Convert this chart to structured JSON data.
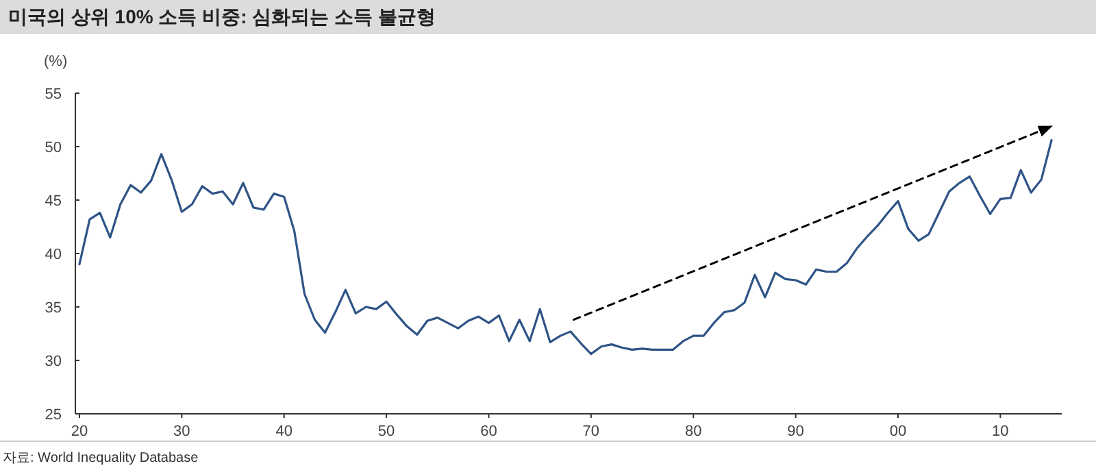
{
  "chart_data": {
    "type": "line",
    "title": "미국의 상위 10% 소득 비중: 심화되는 소득 불균형",
    "ylabel": "(%)",
    "annotations": [
      "자료: World Inequality Database"
    ],
    "xlim": [
      1919.6,
      2016
    ],
    "ylim": [
      25,
      55
    ],
    "yticks": [
      25,
      30,
      35,
      40,
      45,
      50,
      55
    ],
    "xticks": [
      {
        "value": 1920,
        "label": "20"
      },
      {
        "value": 1930,
        "label": "30"
      },
      {
        "value": 1940,
        "label": "40"
      },
      {
        "value": 1950,
        "label": "50"
      },
      {
        "value": 1960,
        "label": "60"
      },
      {
        "value": 1970,
        "label": "70"
      },
      {
        "value": 1980,
        "label": "80"
      },
      {
        "value": 1990,
        "label": "90"
      },
      {
        "value": 2000,
        "label": "00"
      },
      {
        "value": 2010,
        "label": "10"
      }
    ],
    "grid": false,
    "series": [
      {
        "color": "#2f5487",
        "line_style": "solid",
        "x": [
          1920,
          1921,
          1922,
          1923,
          1924,
          1925,
          1926,
          1927,
          1928,
          1929,
          1930,
          1931,
          1932,
          1933,
          1934,
          1935,
          1936,
          1937,
          1938,
          1939,
          1940,
          1941,
          1942,
          1943,
          1944,
          1945,
          1946,
          1947,
          1948,
          1949,
          1950,
          1951,
          1952,
          1953,
          1954,
          1955,
          1956,
          1957,
          1958,
          1959,
          1960,
          1961,
          1962,
          1963,
          1964,
          1965,
          1966,
          1967,
          1968,
          1969,
          1970,
          1971,
          1972,
          1973,
          1974,
          1975,
          1976,
          1977,
          1978,
          1979,
          1980,
          1981,
          1982,
          1983,
          1984,
          1985,
          1986,
          1987,
          1988,
          1989,
          1990,
          1991,
          1992,
          1993,
          1994,
          1995,
          1996,
          1997,
          1998,
          1999,
          2000,
          2001,
          2002,
          2003,
          2004,
          2005,
          2006,
          2007,
          2008,
          2009,
          2010,
          2011,
          2012,
          2013,
          2014,
          2015
        ],
        "values": [
          39.0,
          43.2,
          43.8,
          41.5,
          44.6,
          46.4,
          45.7,
          46.8,
          49.3,
          46.9,
          43.9,
          44.6,
          46.3,
          45.6,
          45.8,
          44.6,
          46.6,
          44.3,
          44.1,
          45.6,
          45.3,
          42.1,
          36.2,
          33.8,
          32.6,
          34.5,
          36.6,
          34.4,
          35.0,
          34.8,
          35.5,
          34.3,
          33.2,
          32.4,
          33.7,
          34.0,
          33.5,
          33.0,
          33.7,
          34.1,
          33.5,
          34.2,
          31.8,
          33.8,
          31.8,
          34.8,
          31.7,
          32.3,
          32.7,
          31.6,
          30.6,
          31.3,
          31.5,
          31.2,
          31.0,
          31.1,
          31.0,
          31.0,
          31.0,
          31.8,
          32.3,
          32.3,
          33.5,
          34.5,
          34.7,
          35.4,
          38.0,
          35.9,
          38.2,
          37.6,
          37.5,
          37.1,
          38.5,
          38.3,
          38.3,
          39.1,
          40.5,
          41.6,
          42.6,
          43.8,
          44.9,
          42.3,
          41.2,
          41.8,
          43.8,
          45.8,
          46.6,
          47.2,
          45.4,
          43.7,
          45.1,
          45.2,
          47.8,
          45.7,
          46.9,
          50.6
        ]
      },
      {
        "color": "#000000",
        "line_style": "dashed",
        "x": [
          1968.3,
          2015
        ],
        "values": [
          33.8,
          51.9
        ]
      }
    ]
  }
}
